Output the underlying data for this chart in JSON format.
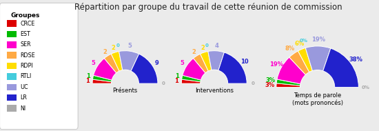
{
  "title": "Répartition par groupe du travail de cette réunion de commission",
  "groups": [
    "CRCE",
    "EST",
    "SER",
    "RDSE",
    "RDPI",
    "RTLI",
    "UC",
    "LR",
    "NI"
  ],
  "colors": [
    "#dd0000",
    "#00bb00",
    "#ff00cc",
    "#ffaa44",
    "#ffdd00",
    "#44ccdd",
    "#9999dd",
    "#2222cc",
    "#aaaaaa"
  ],
  "presentes": [
    1,
    1,
    5,
    2,
    2,
    0,
    5,
    9,
    0
  ],
  "interventions": [
    1,
    1,
    5,
    2,
    2,
    0,
    4,
    10,
    0
  ],
  "temps": [
    3,
    3,
    19,
    8,
    6,
    0,
    19,
    38,
    0
  ],
  "labels_presentes": [
    "1",
    "1",
    "5",
    "2",
    "2",
    "0",
    "5",
    "9",
    "0"
  ],
  "labels_interventions": [
    "1",
    "1",
    "5",
    "2",
    "2",
    "0",
    "4",
    "10",
    "0"
  ],
  "labels_temps": [
    "3%",
    "3%",
    "19%",
    "8%",
    "6%",
    "0%",
    "19%",
    "38%",
    "0%"
  ],
  "subtitle1": "Présents",
  "subtitle2": "Interventions",
  "subtitle3": "Temps de parole\n(mots prononcés)",
  "background_color": "#ebebeb",
  "legend_bg": "#ffffff",
  "legend_title": "Groupes"
}
